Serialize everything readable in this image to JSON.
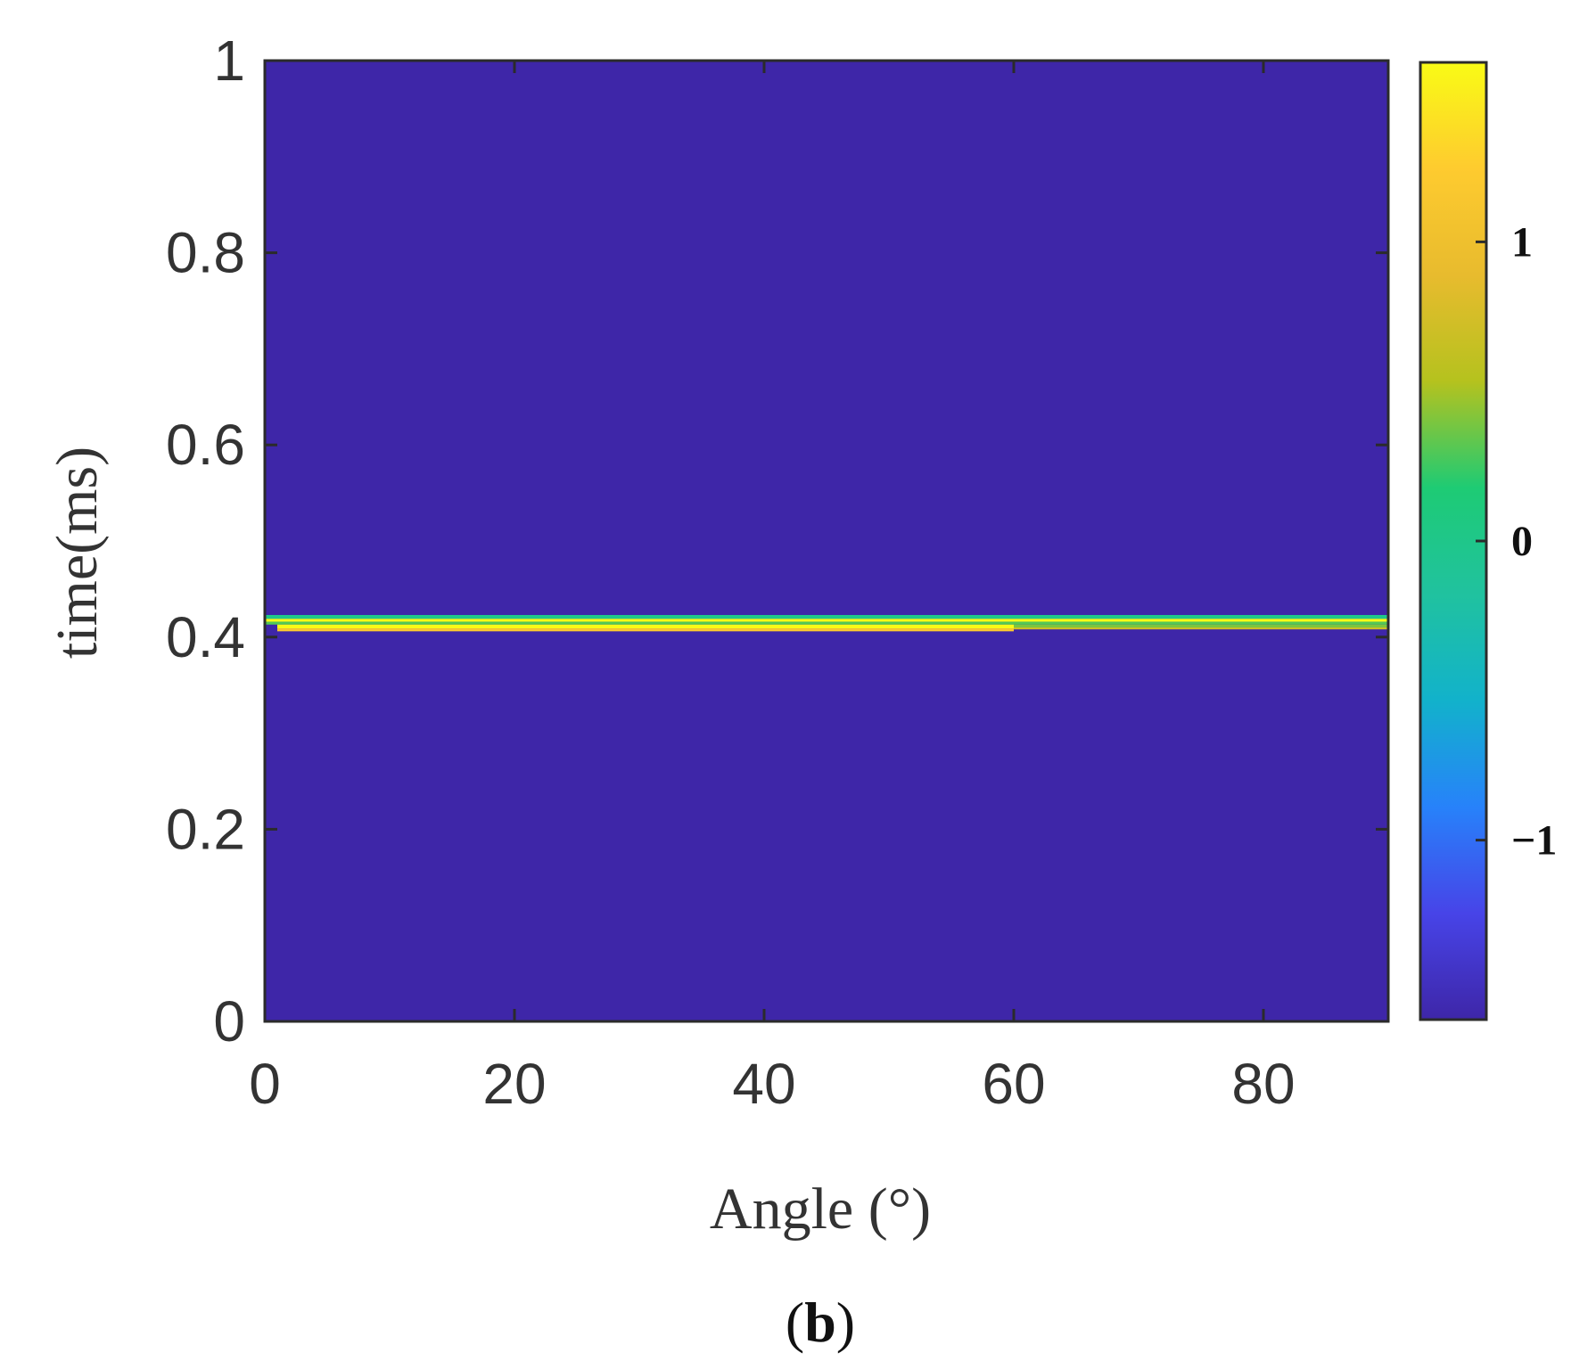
{
  "chart_data": {
    "type": "heatmap",
    "title": "",
    "xlabel": "Angle (°)",
    "ylabel": "time(ms)",
    "xlim": [
      0,
      90
    ],
    "ylim": [
      0,
      1
    ],
    "xticks": [
      0,
      20,
      40,
      60,
      80
    ],
    "xtick_labels": [
      "0",
      "20",
      "40",
      "60",
      "80"
    ],
    "yticks": [
      0,
      0.2,
      0.4,
      0.6,
      0.8,
      1
    ],
    "ytick_labels": [
      "0",
      "0.2",
      "0.4",
      "0.6",
      "0.8",
      "1"
    ],
    "grid": false,
    "background_value": -1.6,
    "bands": [
      {
        "angle_range": [
          0,
          90
        ],
        "time_range": [
          0.419,
          0.423
        ],
        "value": 0.0
      },
      {
        "angle_range": [
          0,
          90
        ],
        "time_range": [
          0.416,
          0.419
        ],
        "value": 1.6
      },
      {
        "angle_range": [
          0,
          90
        ],
        "time_range": [
          0.413,
          0.416
        ],
        "value": 0.3
      },
      {
        "angle_range": [
          60,
          90
        ],
        "time_range": [
          0.41,
          0.413
        ],
        "value": 0.4
      },
      {
        "angle_range": [
          60,
          90
        ],
        "time_range": [
          0.408,
          0.41
        ],
        "value": 0.7
      },
      {
        "angle_range": [
          1,
          60
        ],
        "time_range": [
          0.409,
          0.413
        ],
        "value": 1.6
      },
      {
        "angle_range": [
          1,
          60
        ],
        "time_range": [
          0.406,
          0.409
        ],
        "value": 1.2
      }
    ],
    "colorbar": {
      "range": [
        -1.6,
        1.6
      ],
      "ticks": [
        -1,
        0,
        1
      ],
      "tick_labels": [
        "−1",
        "0",
        "1"
      ],
      "colormap": "parula",
      "stops": [
        "#3e26a8",
        "#4744e8",
        "#2782fa",
        "#12b2cb",
        "#20c29f",
        "#1ecb74",
        "#b5c21e",
        "#e8bb2e",
        "#fecb2f",
        "#f9fb15"
      ]
    }
  },
  "panel_label": "(b)"
}
